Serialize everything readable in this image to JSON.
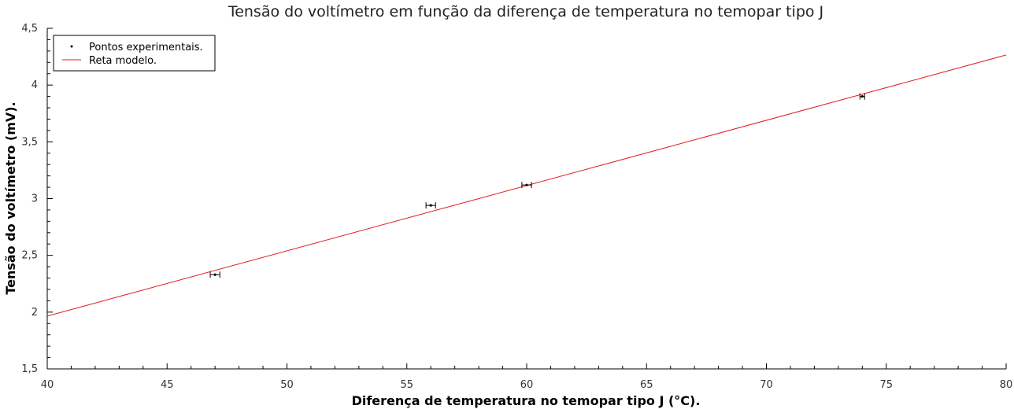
{
  "chart_data": {
    "type": "scatter",
    "title": "Tensão do voltímetro em função da diferença de temperatura no temopar tipo J",
    "xlabel": "Diferença de temperatura no temopar tipo J (°C).",
    "ylabel": "Tensão do voltímetro (mV).",
    "xlim": [
      40,
      80
    ],
    "ylim": [
      1.5,
      4.5
    ],
    "x_ticks": [
      40,
      45,
      50,
      55,
      60,
      65,
      70,
      75,
      80
    ],
    "x_tick_labels": [
      "40",
      "45",
      "50",
      "55",
      "60",
      "65",
      "70",
      "75",
      "80"
    ],
    "y_ticks": [
      1.5,
      2,
      2.5,
      3,
      3.5,
      4,
      4.5
    ],
    "y_tick_labels": [
      "1,5",
      "2",
      "2,5",
      "3",
      "3,5",
      "4",
      "4,5"
    ],
    "grid": false,
    "legend_position": "top-left",
    "series": [
      {
        "name": "Pontos experimentais.",
        "kind": "points",
        "color": "#000000",
        "x": [
          47,
          56,
          60,
          74
        ],
        "y": [
          2.33,
          2.94,
          3.12,
          3.9
        ],
        "x_error": [
          0.2,
          0.2,
          0.2,
          0.1
        ]
      },
      {
        "name": "Reta modelo.",
        "kind": "line",
        "color": "#e31a1c",
        "x": [
          40,
          80
        ],
        "y": [
          1.965,
          4.265
        ]
      }
    ]
  }
}
